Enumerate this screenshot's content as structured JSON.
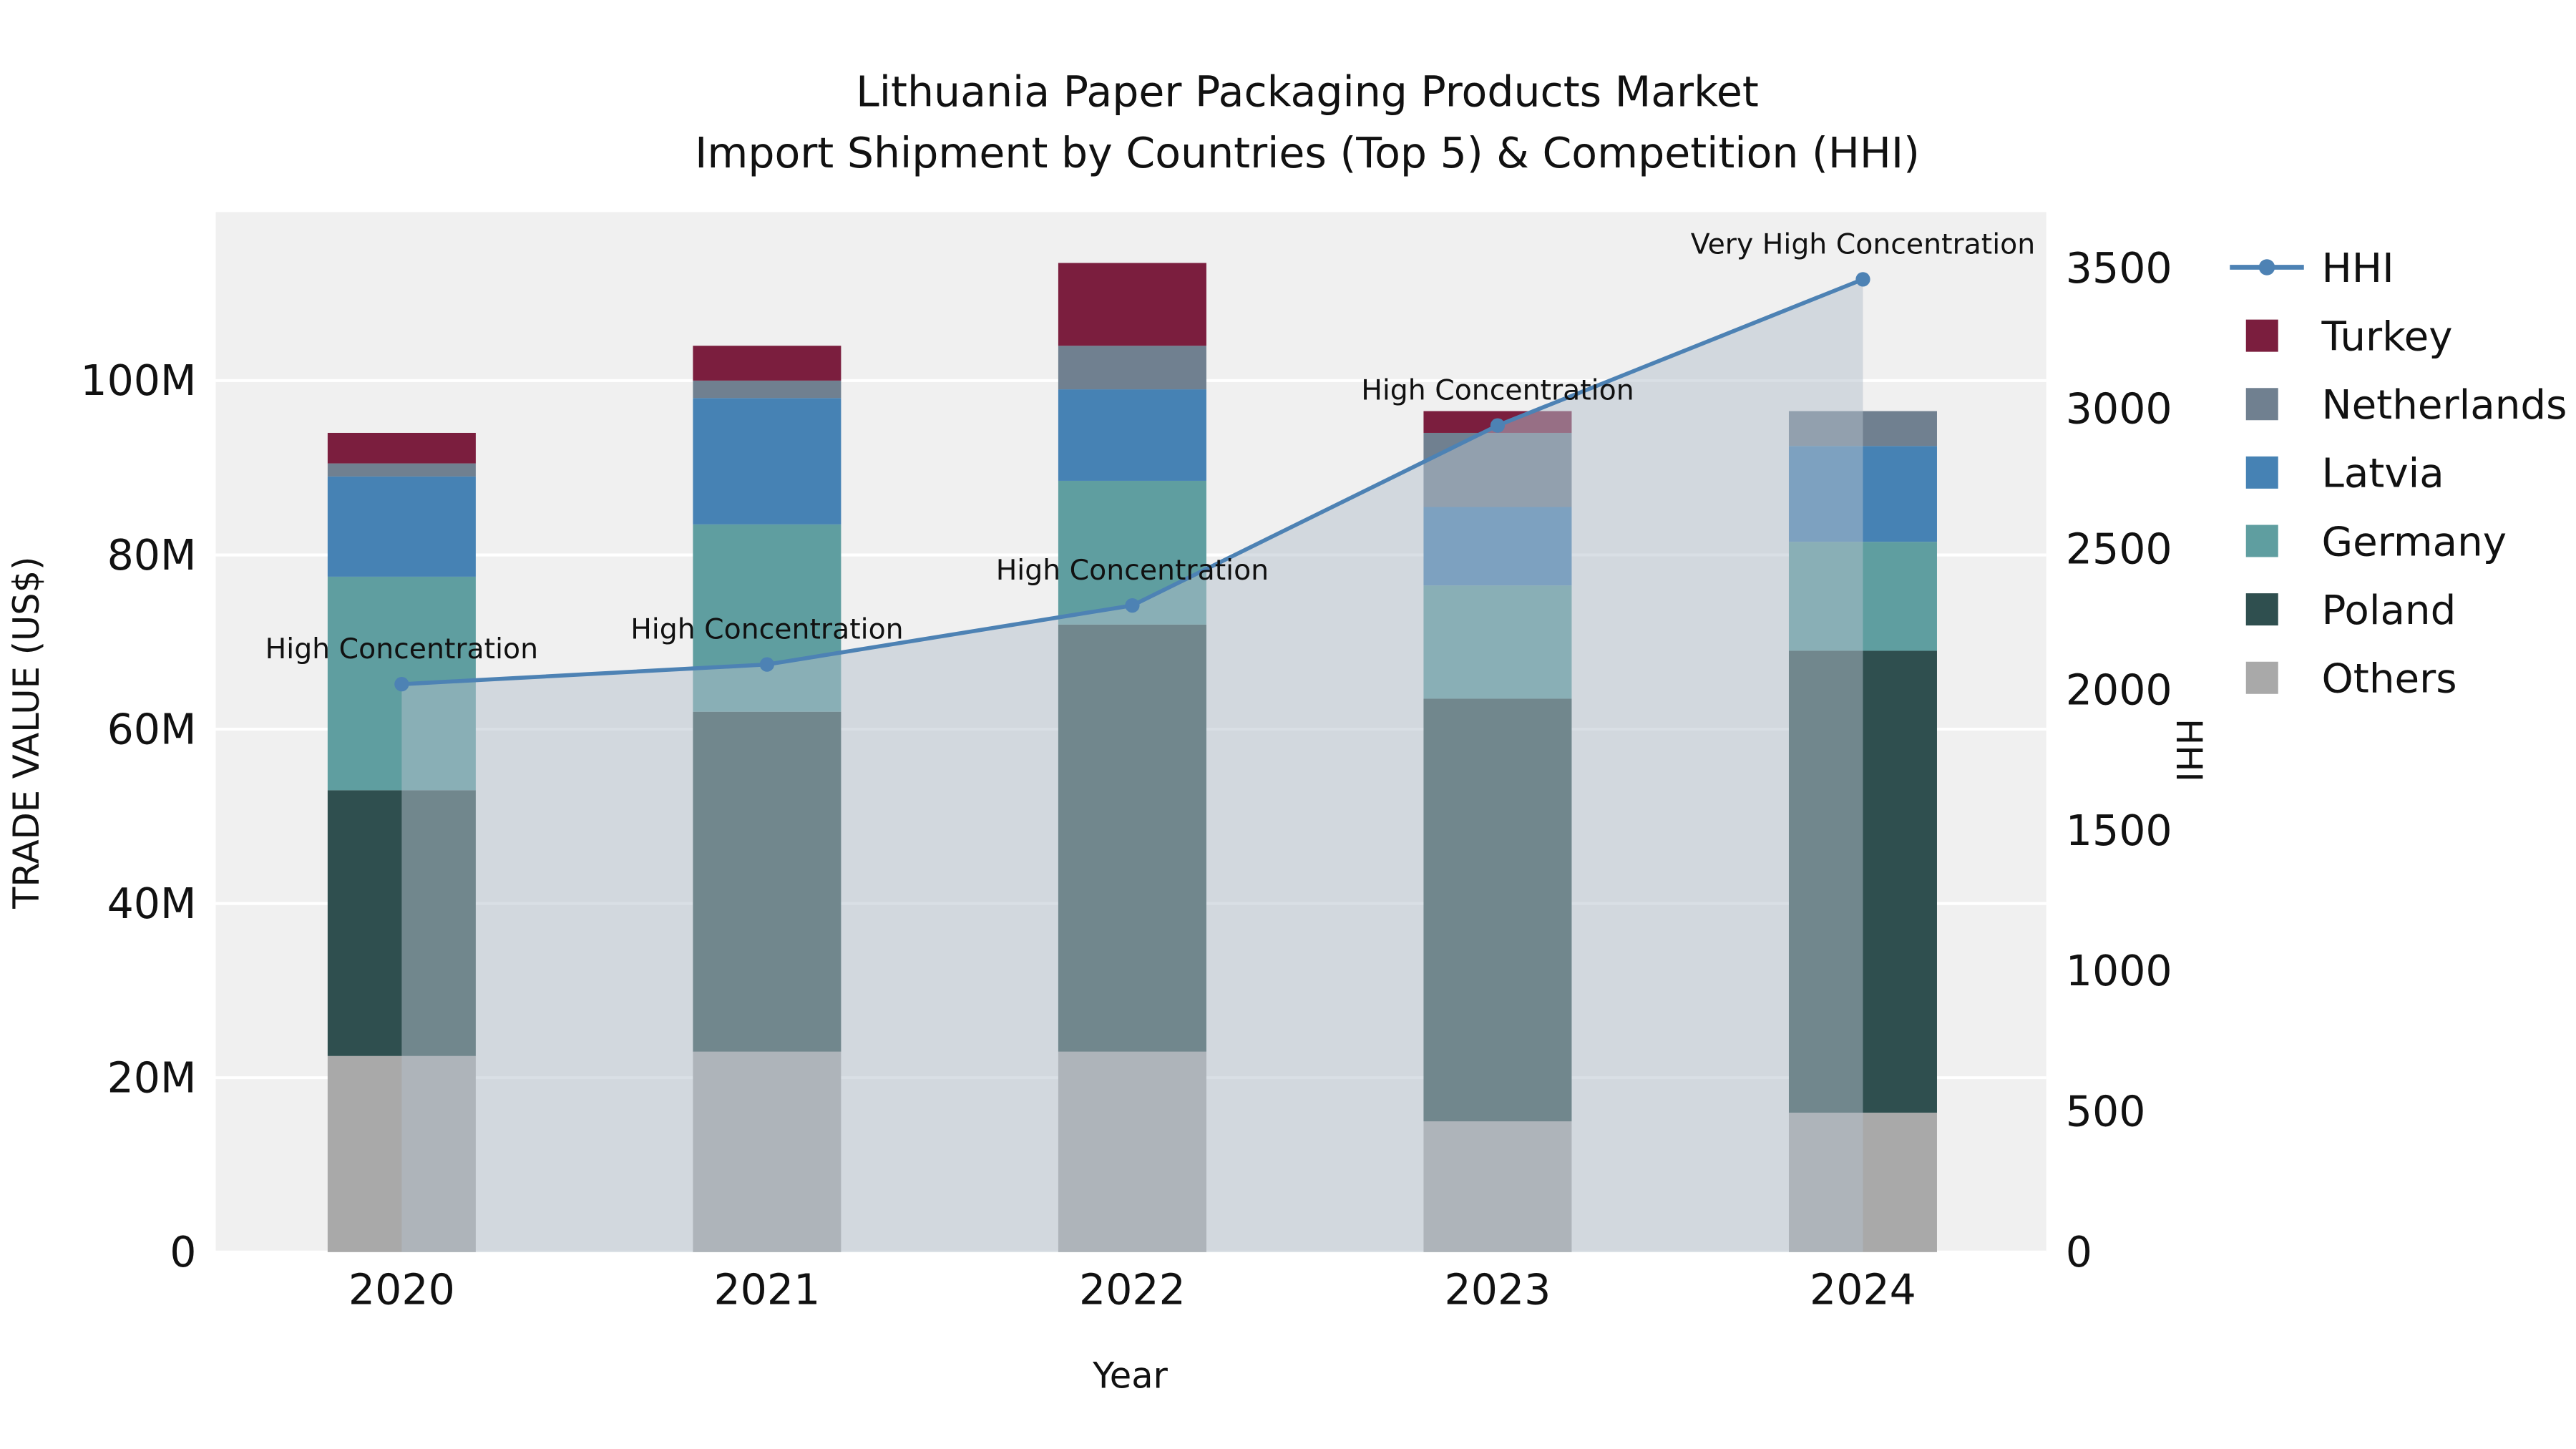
{
  "title": {
    "line1": "Lithuania Paper Packaging Products Market",
    "line2": "Import Shipment by Countries (Top 5) & Competition (HHI)"
  },
  "axes": {
    "y_left": {
      "label": "TRADE VALUE (US$)",
      "ticks": [
        "0",
        "20M",
        "40M",
        "60M",
        "80M",
        "100M"
      ]
    },
    "y_right": {
      "label": "HHI",
      "ticks": [
        "0",
        "500",
        "1000",
        "1500",
        "2000",
        "2500",
        "3000",
        "3500"
      ]
    },
    "x": {
      "label": "Year"
    }
  },
  "legend": {
    "items": [
      "HHI",
      "Turkey",
      "Netherlands",
      "Latvia",
      "Germany",
      "Poland",
      "Others"
    ]
  },
  "colors": {
    "Turkey": "#7b1e3e",
    "Netherlands": "#708090",
    "Latvia": "#4682b4",
    "Germany": "#5f9ea0",
    "Poland": "#2f4f4f",
    "Others": "#a9a9a9",
    "hhi_line": "#4d82b4",
    "hhi_fill": "#b3bfcc",
    "plot_bg": "#f0f0f0",
    "grid": "#ffffff"
  },
  "chart_data": [
    {
      "type": "bar",
      "stacked": true,
      "title": "Lithuania Paper Packaging Products Market — Import Shipment by Countries (Top 5)",
      "xlabel": "Year",
      "ylabel": "TRADE VALUE (US$)",
      "unit": "millions USD",
      "ylim": [
        0,
        119
      ],
      "categories": [
        "2020",
        "2021",
        "2022",
        "2023",
        "2024"
      ],
      "series": [
        {
          "name": "Others",
          "values": [
            22.5,
            23.0,
            23.0,
            15.0,
            16.0
          ]
        },
        {
          "name": "Poland",
          "values": [
            30.5,
            39.0,
            49.0,
            48.5,
            53.0
          ]
        },
        {
          "name": "Germany",
          "values": [
            24.5,
            21.5,
            16.5,
            13.0,
            12.5
          ]
        },
        {
          "name": "Latvia",
          "values": [
            11.5,
            14.5,
            10.5,
            9.0,
            11.0
          ]
        },
        {
          "name": "Netherlands",
          "values": [
            1.5,
            2.0,
            5.0,
            8.5,
            4.0
          ]
        },
        {
          "name": "Turkey",
          "values": [
            3.5,
            4.0,
            9.5,
            2.5,
            0.0
          ]
        }
      ]
    },
    {
      "type": "line",
      "name": "HHI",
      "ylabel": "HHI",
      "ylim": [
        0,
        3700
      ],
      "area_fill": true,
      "x": [
        "2020",
        "2021",
        "2022",
        "2023",
        "2024"
      ],
      "values": [
        2020,
        2090,
        2300,
        2940,
        3460
      ],
      "annotations": [
        "High Concentration",
        "High Concentration",
        "High Concentration",
        "High Concentration",
        "Very High Concentration"
      ]
    }
  ]
}
